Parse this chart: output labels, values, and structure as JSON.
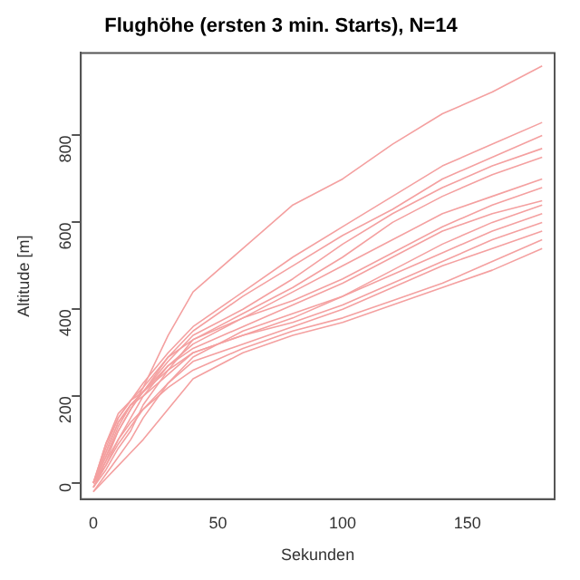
{
  "chart_data": {
    "type": "line",
    "title": "Flughöhe (ersten 3 min. Starts), N=14",
    "xlabel": "Sekunden",
    "ylabel": "Altitude [m]",
    "x": [
      0,
      5,
      10,
      15,
      20,
      30,
      40,
      60,
      80,
      100,
      120,
      140,
      160,
      180
    ],
    "xlim": [
      -5,
      185
    ],
    "xticks": [
      0,
      50,
      100,
      150
    ],
    "ylim": [
      -37,
      990
    ],
    "yticks": [
      0,
      200,
      400,
      600,
      800
    ],
    "grid": false,
    "legend": false,
    "marker": "none",
    "line_style": "solid",
    "series": [
      {
        "color": "#f4a0a0",
        "values": [
          0,
          60,
          120,
          170,
          220,
          340,
          440,
          540,
          640,
          700,
          780,
          850,
          900,
          960
        ]
      },
      {
        "color": "#f4a0a0",
        "values": [
          0,
          90,
          150,
          190,
          230,
          300,
          360,
          440,
          520,
          590,
          660,
          730,
          780,
          830
        ]
      },
      {
        "color": "#f4a0a0",
        "values": [
          0,
          70,
          140,
          180,
          210,
          290,
          350,
          430,
          500,
          570,
          630,
          700,
          750,
          800
        ]
      },
      {
        "color": "#f4a0a0",
        "values": [
          -10,
          50,
          120,
          170,
          210,
          280,
          340,
          400,
          470,
          550,
          620,
          680,
          730,
          770
        ]
      },
      {
        "color": "#f4a0a0",
        "values": [
          0,
          80,
          150,
          190,
          220,
          290,
          330,
          390,
          450,
          520,
          600,
          660,
          710,
          750
        ]
      },
      {
        "color": "#f4a0a0",
        "values": [
          0,
          40,
          100,
          150,
          200,
          270,
          320,
          380,
          440,
          500,
          560,
          620,
          660,
          700
        ]
      },
      {
        "color": "#f4a0a0",
        "values": [
          -10,
          30,
          80,
          120,
          180,
          260,
          330,
          380,
          420,
          470,
          530,
          590,
          640,
          680
        ]
      },
      {
        "color": "#f4a0a0",
        "values": [
          0,
          90,
          160,
          190,
          210,
          270,
          310,
          360,
          410,
          460,
          520,
          580,
          620,
          650
        ]
      },
      {
        "color": "#f4a0a0",
        "values": [
          0,
          60,
          130,
          180,
          210,
          260,
          300,
          340,
          380,
          430,
          490,
          550,
          600,
          640
        ]
      },
      {
        "color": "#f4a0a0",
        "values": [
          -20,
          20,
          60,
          100,
          150,
          230,
          290,
          350,
          390,
          430,
          480,
          530,
          580,
          620
        ]
      },
      {
        "color": "#f4a0a0",
        "values": [
          0,
          70,
          140,
          180,
          200,
          250,
          300,
          340,
          370,
          410,
          460,
          510,
          560,
          600
        ]
      },
      {
        "color": "#f4a0a0",
        "values": [
          -10,
          40,
          90,
          130,
          170,
          230,
          280,
          320,
          360,
          400,
          450,
          500,
          540,
          580
        ]
      },
      {
        "color": "#f4a0a0",
        "values": [
          0,
          50,
          100,
          140,
          170,
          220,
          260,
          310,
          350,
          380,
          420,
          460,
          510,
          560
        ]
      },
      {
        "color": "#f4a0a0",
        "values": [
          -20,
          10,
          40,
          70,
          100,
          170,
          240,
          300,
          340,
          370,
          410,
          450,
          490,
          540
        ]
      }
    ]
  }
}
